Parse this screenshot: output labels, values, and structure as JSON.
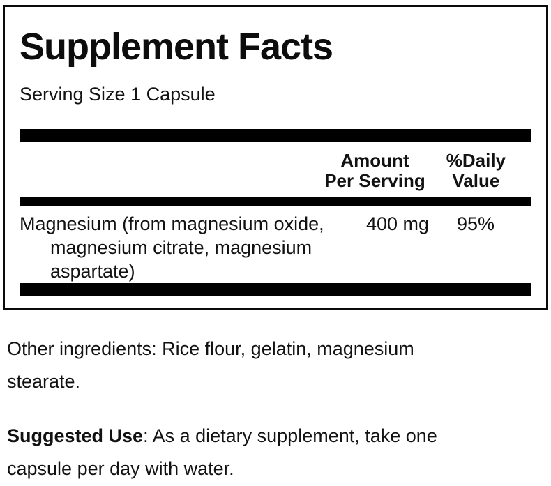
{
  "panel": {
    "title": "Supplement Facts",
    "serving_size": "Serving Size 1 Capsule",
    "columns": {
      "amount_line1": "Amount",
      "amount_line2": "Per Serving",
      "dv_line1": "%Daily",
      "dv_line2": "Value"
    },
    "rows": [
      {
        "name": "Magnesium (from magnesium oxide, magnesium citrate, magnesium aspartate)",
        "name_lines": [
          "Magnesium (from magnesium oxide,",
          "magnesium citrate, magnesium",
          "aspartate)"
        ],
        "amount": "400 mg",
        "daily_value": "95%"
      }
    ]
  },
  "footer": {
    "other_ingredients": {
      "line1": "Other ingredients: Rice flour, gelatin, magnesium",
      "line2": "stearate."
    },
    "suggested_use": {
      "label": "Suggested Use",
      "line1_rest": ": As a dietary supplement, take one",
      "line2": "capsule per day with water."
    }
  },
  "colors": {
    "background": "#ffffff",
    "text": "#121212",
    "bar": "#000000",
    "border": "#0a0a0a"
  }
}
